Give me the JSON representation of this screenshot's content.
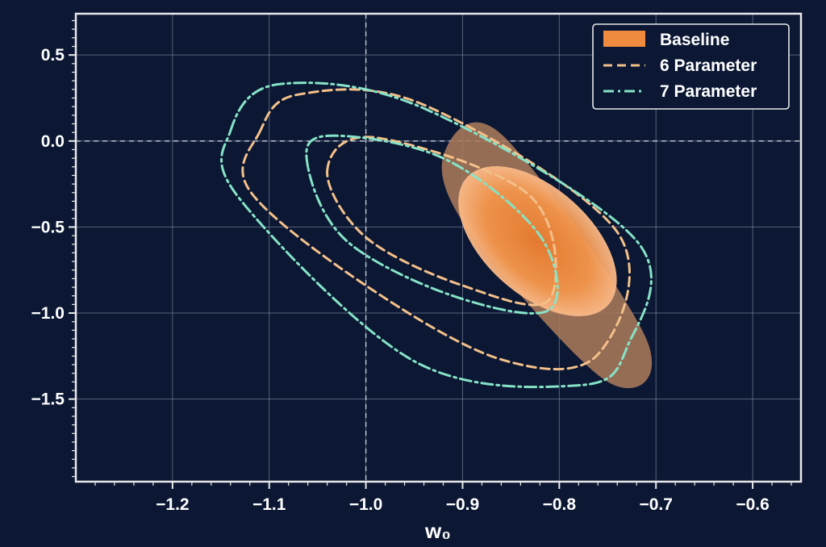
{
  "colors": {
    "background": "#0b1733",
    "frame": "#e8e8e8",
    "grid": "#8a93a8",
    "baseline_inner": "#f2944a",
    "baseline_outer": "#a87a5a",
    "six_param": "#f3c08a",
    "seven_param": "#86e3c7"
  },
  "chart_data": {
    "type": "contour",
    "xlabel": "w₀",
    "ylabel": "",
    "xlim": [
      -1.3,
      -0.55
    ],
    "ylim": [
      -1.98,
      0.74
    ],
    "xticks": [
      -1.2,
      -1.1,
      -1.0,
      -0.9,
      -0.8,
      -0.7,
      -0.6
    ],
    "xtick_labels": [
      "−1.2",
      "−1.1",
      "−1.0",
      "−0.9",
      "−0.8",
      "−0.7",
      "−0.6"
    ],
    "yticks": [
      0.5,
      0.0,
      -0.5,
      -1.0,
      -1.5
    ],
    "ytick_labels": [
      "0.5",
      "0.0",
      "−0.5",
      "−1.0",
      "−1.5"
    ],
    "grid": true,
    "reference_lines": {
      "x": -1.0,
      "y": 0.0
    },
    "legend": {
      "position": "top-right",
      "entries": [
        {
          "label": "Baseline",
          "style": "filled"
        },
        {
          "label": "6 Parameter",
          "style": "dashed"
        },
        {
          "label": "7 Parameter",
          "style": "dash-dot"
        }
      ]
    },
    "series": [
      {
        "name": "Baseline",
        "contours": [
          {
            "level": "1-sigma",
            "points": [
              [
                -0.82,
                -0.79
              ],
              [
                -0.89,
                -0.47
              ],
              [
                -0.83,
                -0.28
              ],
              [
                -0.75,
                -0.79
              ]
            ]
          },
          {
            "level": "2-sigma",
            "points": [
              [
                -0.92,
                -0.09
              ],
              [
                -0.89,
                -0.55
              ],
              [
                -0.75,
                -1.4
              ],
              [
                -0.71,
                -1.15
              ],
              [
                -0.86,
                0.04
              ]
            ]
          }
        ]
      },
      {
        "name": "6 Parameter",
        "contours": [
          {
            "level": "1-sigma",
            "points": [
              [
                -1.04,
                -0.17
              ],
              [
                -0.99,
                0.02
              ],
              [
                -0.83,
                -0.32
              ],
              [
                -0.81,
                -0.92
              ],
              [
                -0.9,
                -0.84
              ],
              [
                -1.0,
                -0.56
              ]
            ]
          },
          {
            "level": "2-sigma",
            "points": [
              [
                -1.11,
                0.05
              ],
              [
                -1.07,
                0.27
              ],
              [
                -0.94,
                0.21
              ],
              [
                -0.74,
                -0.53
              ],
              [
                -0.76,
                -1.24
              ],
              [
                -0.86,
                -1.27
              ],
              [
                -1.0,
                -0.84
              ],
              [
                -1.12,
                -0.29
              ]
            ]
          }
        ]
      },
      {
        "name": "7 Parameter",
        "contours": [
          {
            "level": "1-sigma",
            "points": [
              [
                -1.06,
                -0.15
              ],
              [
                -1.04,
                0.03
              ],
              [
                -0.92,
                -0.1
              ],
              [
                -0.82,
                -0.55
              ],
              [
                -0.81,
                -0.98
              ],
              [
                -0.91,
                -0.9
              ],
              [
                -1.02,
                -0.58
              ]
            ]
          },
          {
            "level": "2-sigma",
            "points": [
              [
                -1.14,
                0.06
              ],
              [
                -1.09,
                0.33
              ],
              [
                -0.94,
                0.19
              ],
              [
                -0.72,
                -0.58
              ],
              [
                -0.73,
                -1.2
              ],
              [
                -0.78,
                -1.42
              ],
              [
                -0.95,
                -1.28
              ],
              [
                -1.13,
                -0.34
              ]
            ]
          }
        ]
      }
    ]
  }
}
